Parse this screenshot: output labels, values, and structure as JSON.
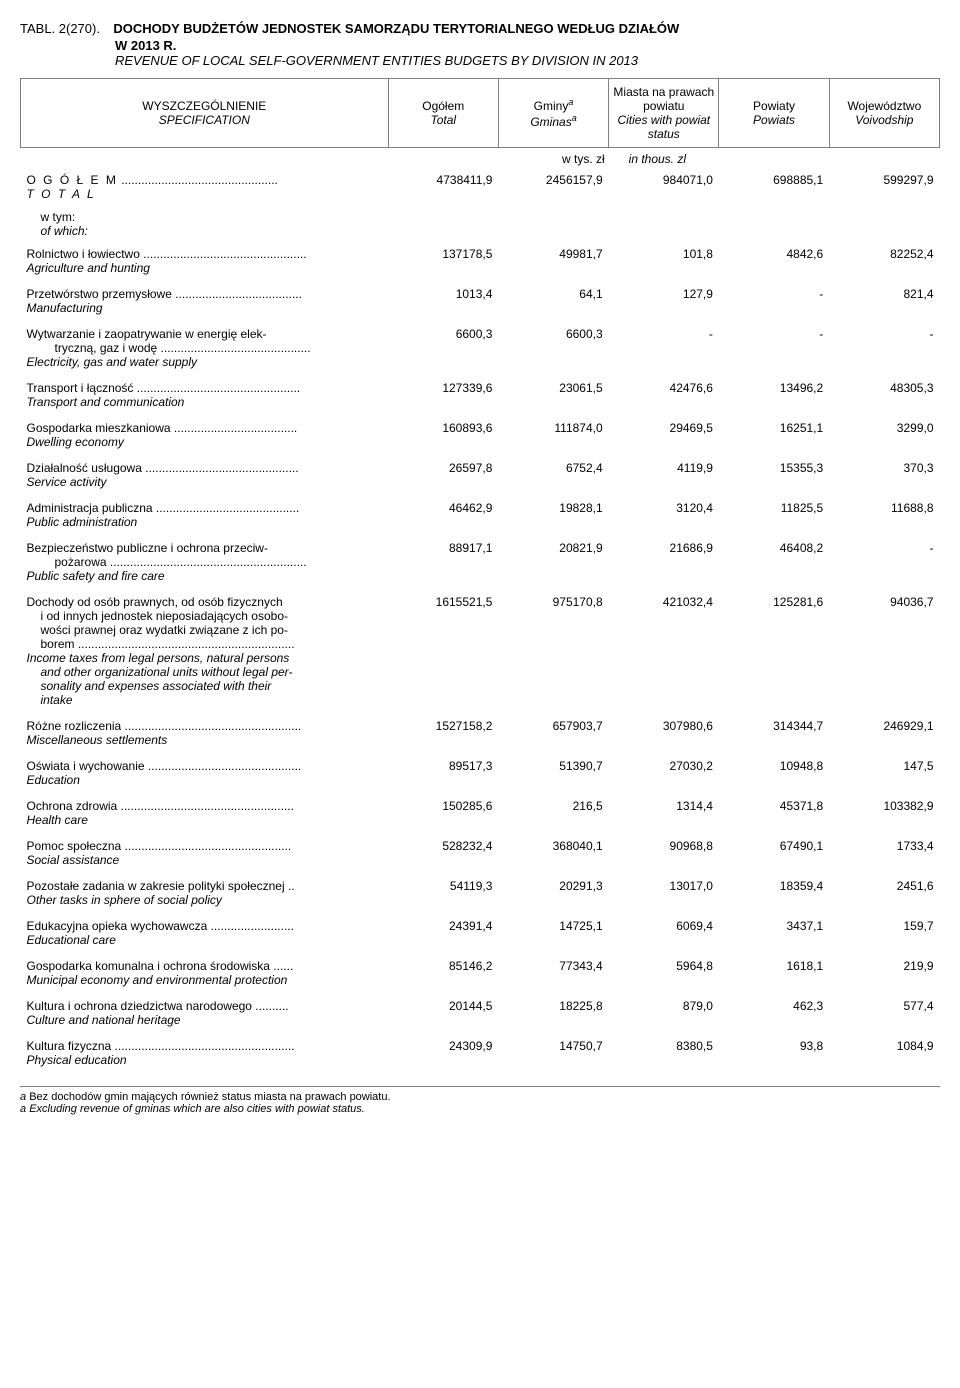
{
  "title": {
    "tabl": "TABL. 2(270).",
    "pl_line1": "DOCHODY BUDŻETÓW JEDNOSTEK SAMORZĄDU TERYTORIALNEGO WEDŁUG DZIAŁÓW",
    "pl_line2": "W 2013 R.",
    "en": "REVENUE OF LOCAL SELF-GOVERNMENT ENTITIES BUDGETS BY DIVISION IN 2013"
  },
  "headers": {
    "spec_pl": "WYSZCZEGÓLNIENIE",
    "spec_en": "SPECIFICATION",
    "total_pl": "Ogółem",
    "total_en": "Total",
    "gminy_pl": "Gminy",
    "gminy_en": "Gminas",
    "gminy_sup": "a",
    "miasta_pl": "Miasta na prawach powiatu",
    "miasta_en": "Cities with powiat status",
    "powiaty_pl": "Powiaty",
    "powiaty_en": "Powiats",
    "woj_pl": "Województwo",
    "woj_en": "Voivodship",
    "units_pl": "w tys. zł",
    "units_en": "in thous. zl"
  },
  "total_row": {
    "label_pl": "O G Ó Ł E M",
    "label_en": "T O T A L",
    "dots": " ...............................................",
    "v": [
      "4738411,9",
      "2456157,9",
      "984071,0",
      "698885,1",
      "599297,9"
    ]
  },
  "subhead": {
    "pl": "w tym:",
    "en": "of which:"
  },
  "rows": [
    {
      "pl": "Rolnictwo i łowiectwo .................................................",
      "en": "Agriculture and hunting",
      "v": [
        "137178,5",
        "49981,7",
        "101,8",
        "4842,6",
        "82252,4"
      ]
    },
    {
      "pl": "Przetwórstwo przemysłowe ......................................",
      "en": "Manufacturing",
      "v": [
        "1013,4",
        "64,1",
        "127,9",
        "-",
        "821,4"
      ]
    },
    {
      "pl": "Wytwarzanie i zaopatrywanie w energię elek-",
      "pl2": "tryczną, gaz i wodę .............................................",
      "en": "Electricity, gas and water supply",
      "v": [
        "6600,3",
        "6600,3",
        "-",
        "-",
        "-"
      ]
    },
    {
      "pl": "Transport i łączność .................................................",
      "en": "Transport and communication",
      "v": [
        "127339,6",
        "23061,5",
        "42476,6",
        "13496,2",
        "48305,3"
      ]
    },
    {
      "pl": "Gospodarka mieszkaniowa .....................................",
      "en": "Dwelling economy",
      "v": [
        "160893,6",
        "111874,0",
        "29469,5",
        "16251,1",
        "3299,0"
      ]
    },
    {
      "pl": "Działalność usługowa ..............................................",
      "en": "Service activity",
      "v": [
        "26597,8",
        "6752,4",
        "4119,9",
        "15355,3",
        "370,3"
      ]
    },
    {
      "pl": "Administracja publiczna ...........................................",
      "en": "Public administration",
      "v": [
        "46462,9",
        "19828,1",
        "3120,4",
        "11825,5",
        "11688,8"
      ]
    },
    {
      "pl": "Bezpieczeństwo publiczne i ochrona przeciw-",
      "pl2": "pożarowa ...........................................................",
      "en": "Public safety and fire care",
      "v": [
        "88917,1",
        "20821,9",
        "21686,9",
        "46408,2",
        "-"
      ]
    },
    {
      "pl_lines": [
        "Dochody od osób prawnych, od osób fizycznych",
        "i od innych jednostek nieposiadających osobo-",
        "wości prawnej oraz wydatki związane z ich po-",
        "borem ................................................................."
      ],
      "en_lines": [
        "Income taxes from legal persons, natural persons",
        "and other organizational units without legal per-",
        "sonality and expenses associated with their",
        "intake"
      ],
      "v": [
        "1615521,5",
        "975170,8",
        "421032,4",
        "125281,6",
        "94036,7"
      ]
    },
    {
      "pl": "Różne rozliczenia .....................................................",
      "en": "Miscellaneous settlements",
      "v": [
        "1527158,2",
        "657903,7",
        "307980,6",
        "314344,7",
        "246929,1"
      ]
    },
    {
      "pl": "Oświata i wychowanie ..............................................",
      "en": "Education",
      "v": [
        "89517,3",
        "51390,7",
        "27030,2",
        "10948,8",
        "147,5"
      ]
    },
    {
      "pl": "Ochrona zdrowia ....................................................",
      "en": "Health care",
      "v": [
        "150285,6",
        "216,5",
        "1314,4",
        "45371,8",
        "103382,9"
      ]
    },
    {
      "pl": "Pomoc społeczna ..................................................",
      "en": "Social assistance",
      "v": [
        "528232,4",
        "368040,1",
        "90968,8",
        "67490,1",
        "1733,4"
      ]
    },
    {
      "pl": "Pozostałe zadania w zakresie polityki społecznej ..",
      "en": "Other tasks in sphere of social policy",
      "v": [
        "54119,3",
        "20291,3",
        "13017,0",
        "18359,4",
        "2451,6"
      ]
    },
    {
      "pl": "Edukacyjna opieka wychowawcza .........................",
      "en": "Educational care",
      "v": [
        "24391,4",
        "14725,1",
        "6069,4",
        "3437,1",
        "159,7"
      ]
    },
    {
      "pl": "Gospodarka komunalna i ochrona środowiska ......",
      "en": "Municipal economy and environmental protection",
      "v": [
        "85146,2",
        "77343,4",
        "5964,8",
        "1618,1",
        "219,9"
      ]
    },
    {
      "pl": "Kultura i ochrona dziedzictwa narodowego ..........",
      "en": "Culture and national heritage",
      "v": [
        "20144,5",
        "18225,8",
        "879,0",
        "462,3",
        "577,4"
      ]
    },
    {
      "pl": "Kultura fizyczna ......................................................",
      "en": "Physical education",
      "v": [
        "24309,9",
        "14750,7",
        "8380,5",
        "93,8",
        "1084,9"
      ]
    }
  ],
  "footnote": {
    "marker": "a",
    "pl": "Bez dochodów gmin mających również status miasta na prawach powiatu.",
    "en": "Excluding revenue of gminas which are also cities with powiat status."
  },
  "style": {
    "col_widths": [
      "40%",
      "12%",
      "12%",
      "12%",
      "12%",
      "12%"
    ]
  }
}
